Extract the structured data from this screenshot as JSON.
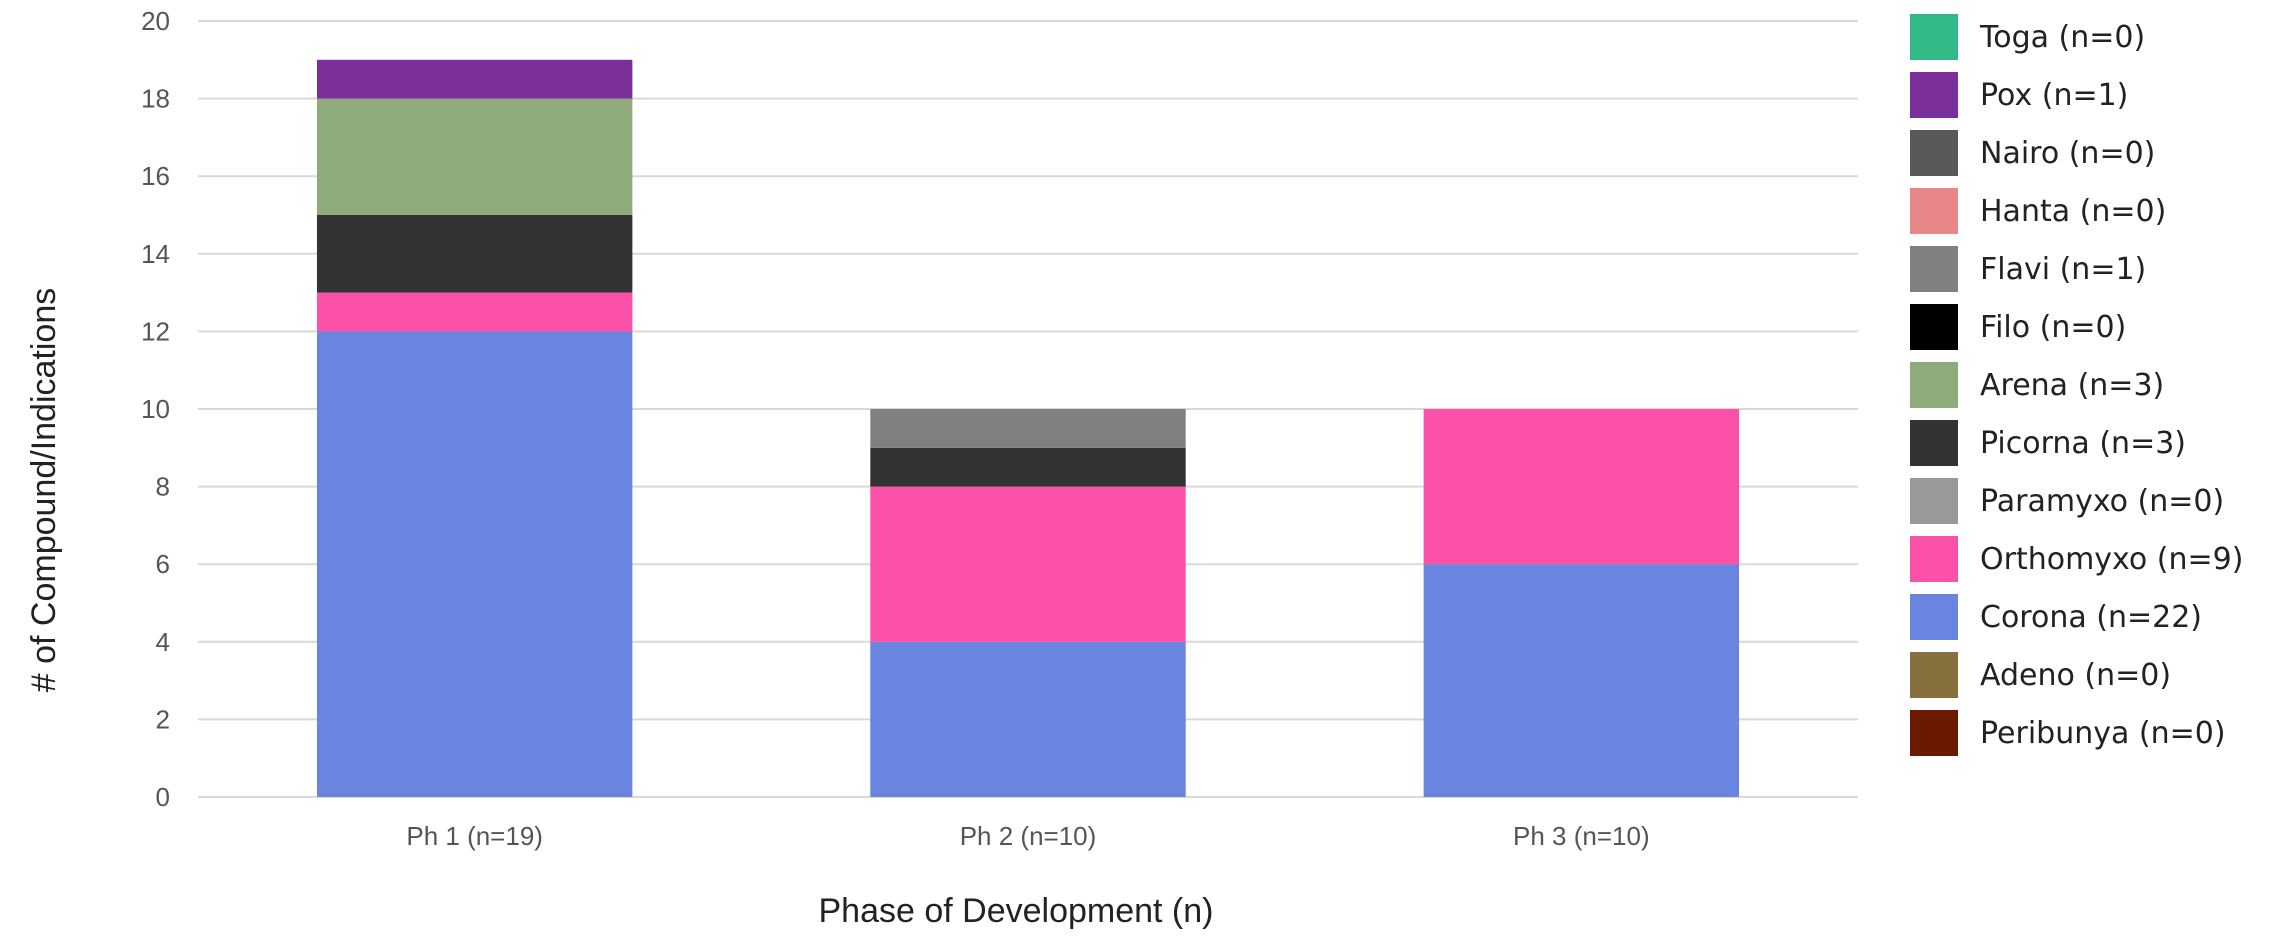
{
  "chart_data": {
    "type": "bar",
    "stacked": true,
    "categories": [
      "Ph 1 (n=19)",
      "Ph 2 (n=10)",
      "Ph 3 (n=10)"
    ],
    "xlabel": "Phase of Development (n)",
    "ylabel": "# of Compound/Indications",
    "ylim": [
      0,
      20
    ],
    "yticks": [
      0,
      2,
      4,
      6,
      8,
      10,
      12,
      14,
      16,
      18,
      20
    ],
    "grid": true,
    "legend_position": "right",
    "series": [
      {
        "name": "Corona (n=22)",
        "color": "#6a85e0",
        "values": [
          12,
          4,
          6
        ]
      },
      {
        "name": "Orthomyxo (n=9)",
        "color": "#fb51a8",
        "values": [
          1,
          4,
          4
        ]
      },
      {
        "name": "Picorna (n=3)",
        "color": "#333333",
        "values": [
          2,
          1,
          0
        ]
      },
      {
        "name": "Arena (n=3)",
        "color": "#8fab7a",
        "values": [
          3,
          0,
          0
        ]
      },
      {
        "name": "Flavi (n=1)",
        "color": "#808080",
        "values": [
          0,
          1,
          0
        ]
      },
      {
        "name": "Pox (n=1)",
        "color": "#7b2f9a",
        "values": [
          1,
          0,
          0
        ]
      }
    ],
    "legend": [
      {
        "label": "Toga (n=0)",
        "color": "#33b887"
      },
      {
        "label": "Pox (n=1)",
        "color": "#7b2f9a"
      },
      {
        "label": "Nairo (n=0)",
        "color": "#595959"
      },
      {
        "label": "Hanta (n=0)",
        "color": "#e8878a"
      },
      {
        "label": "Flavi (n=1)",
        "color": "#808080"
      },
      {
        "label": "Filo (n=0)",
        "color": "#000000"
      },
      {
        "label": "Arena (n=3)",
        "color": "#8fab7a"
      },
      {
        "label": "Picorna (n=3)",
        "color": "#333333"
      },
      {
        "label": "Paramyxo (n=0)",
        "color": "#999999"
      },
      {
        "label": "Orthomyxo (n=9)",
        "color": "#fb51a8"
      },
      {
        "label": "Corona (n=22)",
        "color": "#6a85e0"
      },
      {
        "label": "Adeno (n=0)",
        "color": "#85703e"
      },
      {
        "label": "Peribunya (n=0)",
        "color": "#6b1a00"
      }
    ]
  }
}
